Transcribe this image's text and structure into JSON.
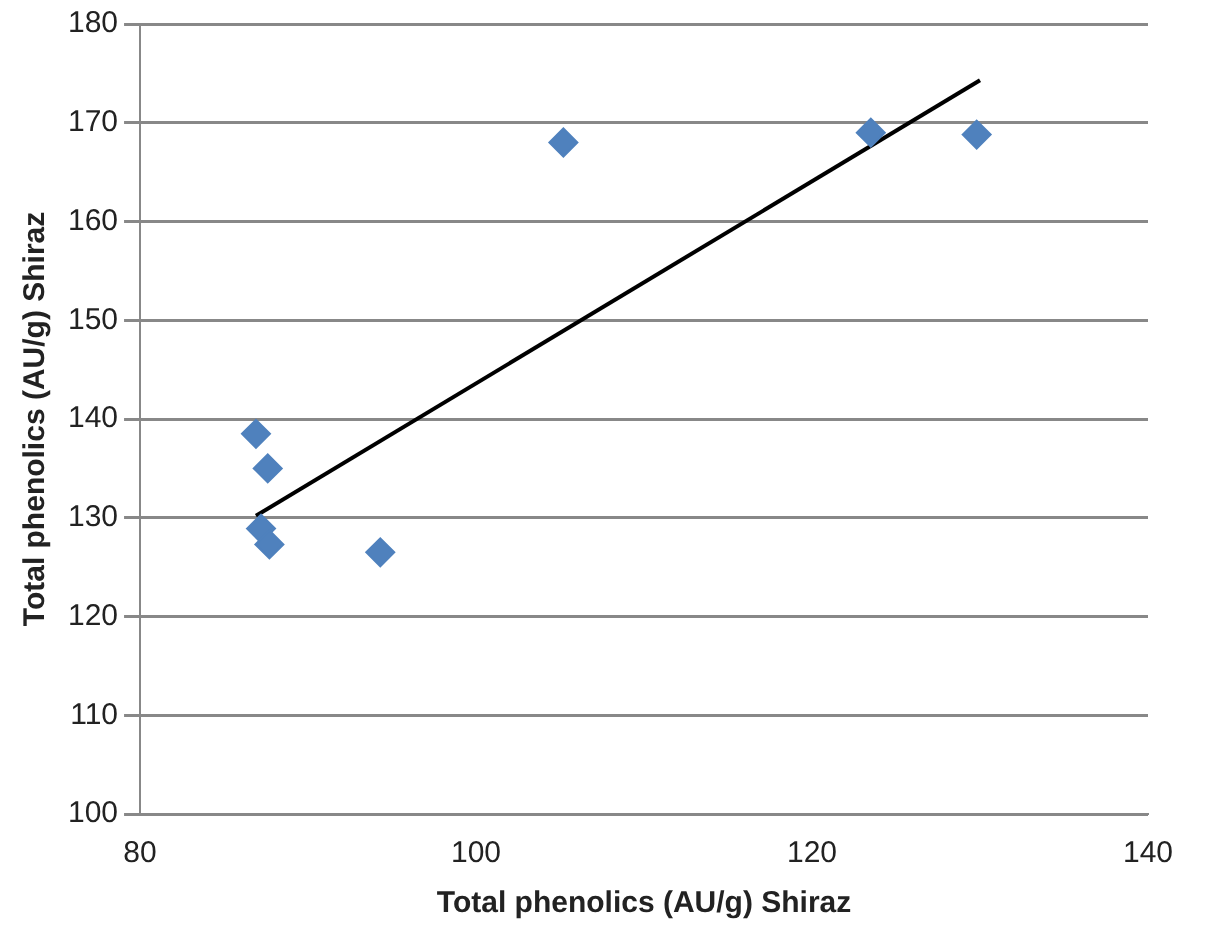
{
  "chart_data": {
    "type": "scatter",
    "xlabel": "Total phenolics (AU/g) Shiraz",
    "ylabel": "Total phenolics (AU/g) Shiraz",
    "xlim": [
      80,
      140
    ],
    "xticks": [
      80,
      100,
      120,
      140
    ],
    "ylim": [
      100,
      180
    ],
    "yticks": [
      100,
      110,
      120,
      130,
      140,
      150,
      160,
      170,
      180
    ],
    "grid": "y",
    "legend": false,
    "marker": "diamond",
    "series": [
      {
        "color": "#4f81bd",
        "x": [
          86.9,
          87.6,
          87.2,
          87.7,
          94.3,
          105.2,
          123.5,
          129.8
        ],
        "values": [
          138.5,
          135.0,
          128.9,
          127.3,
          126.5,
          168.0,
          169.0,
          168.8
        ]
      },
      {
        "type": "line",
        "color": "#000000",
        "marker": "none",
        "x": [
          86.9,
          130.0
        ],
        "values": [
          130.2,
          174.3
        ]
      }
    ]
  }
}
